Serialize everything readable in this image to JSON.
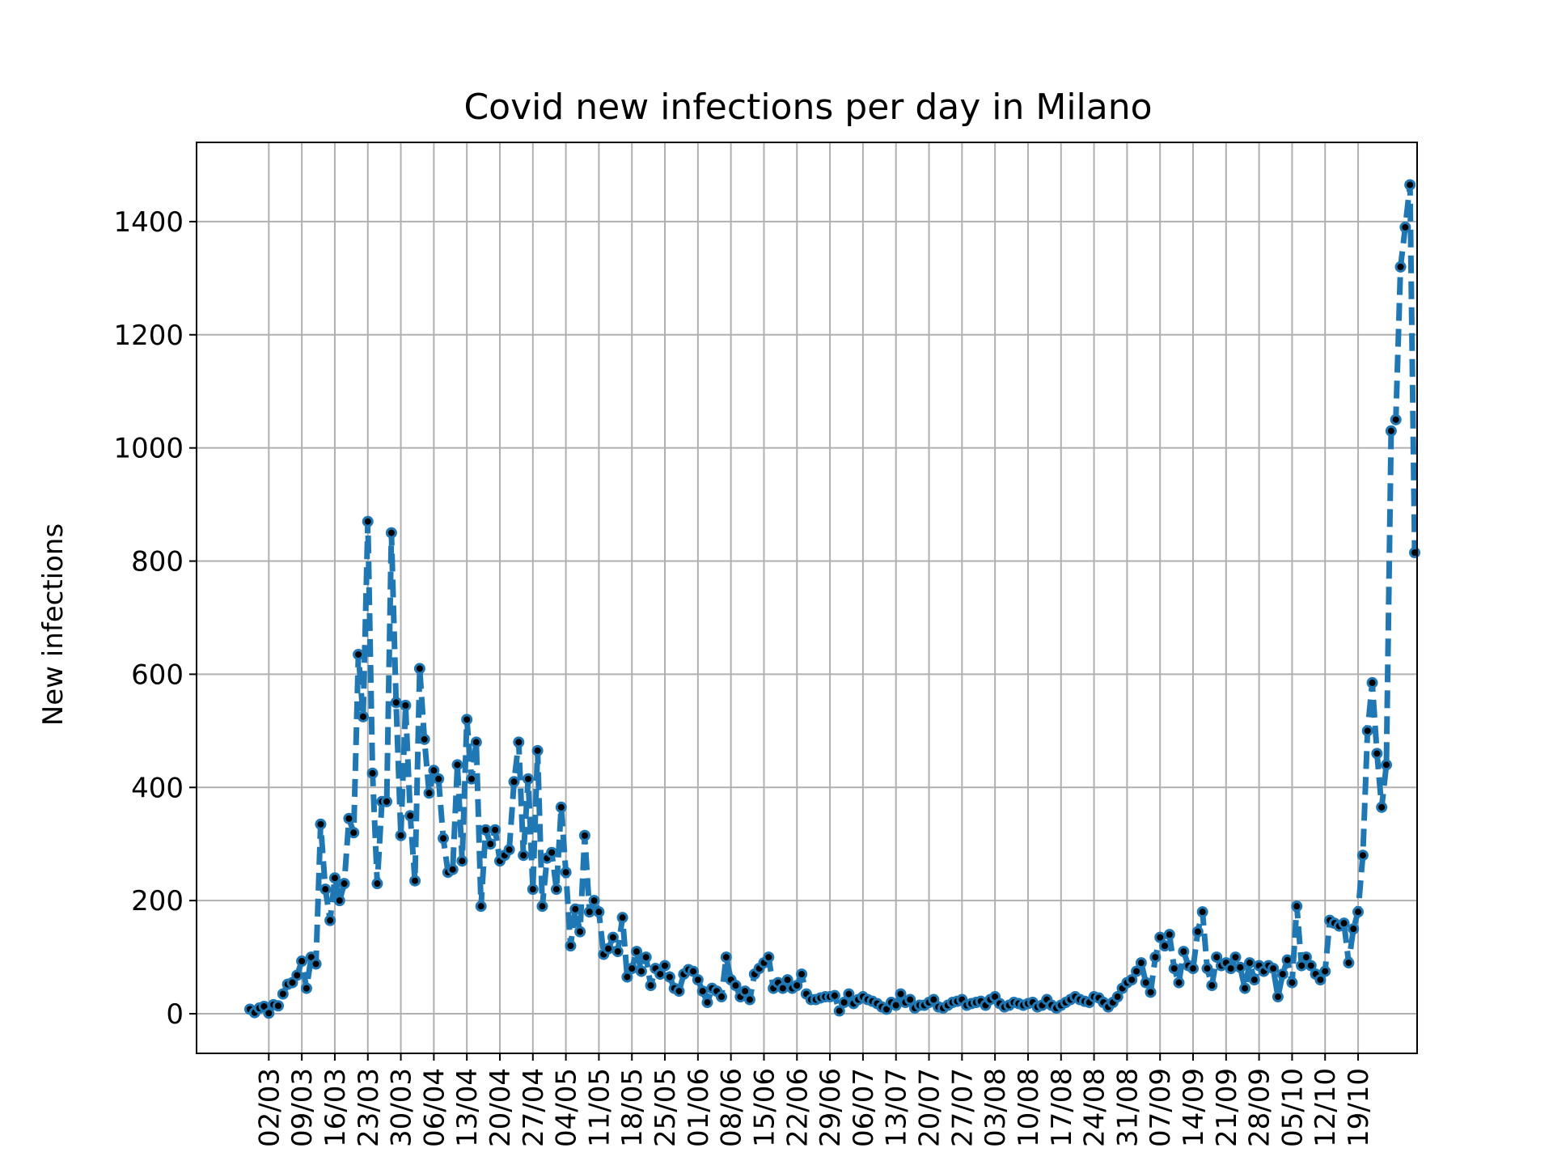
{
  "chart_data": {
    "type": "line",
    "title": "Covid new infections per day in Milano",
    "xlabel": "",
    "ylabel": "New infections",
    "x_tick_labels": [
      "02/03",
      "09/03",
      "16/03",
      "23/03",
      "30/03",
      "06/04",
      "13/04",
      "20/04",
      "27/04",
      "04/05",
      "11/05",
      "18/05",
      "25/05",
      "01/06",
      "08/06",
      "15/06",
      "22/06",
      "29/06",
      "06/07",
      "13/07",
      "20/07",
      "27/07",
      "03/08",
      "10/08",
      "17/08",
      "24/08",
      "31/08",
      "07/09",
      "14/09",
      "21/09",
      "28/09",
      "05/10",
      "12/10",
      "19/10"
    ],
    "y_ticks": [
      0,
      200,
      400,
      600,
      800,
      1000,
      1200,
      1400
    ],
    "ylim": [
      -70,
      1540
    ],
    "x_first_label": "02/03",
    "grid": true,
    "series": [
      {
        "color": "#1f77b4",
        "marker_color": "#000000",
        "line_style": "dashed",
        "values": [
          8,
          2,
          10,
          13,
          1,
          16,
          14,
          35,
          52,
          55,
          68,
          93,
          45,
          100,
          88,
          335,
          220,
          165,
          240,
          200,
          230,
          345,
          320,
          635,
          525,
          870,
          425,
          230,
          375,
          375,
          850,
          550,
          315,
          545,
          350,
          235,
          610,
          485,
          390,
          430,
          415,
          310,
          250,
          255,
          440,
          270,
          520,
          415,
          480,
          190,
          325,
          300,
          325,
          270,
          280,
          290,
          410,
          480,
          280,
          415,
          220,
          465,
          190,
          275,
          285,
          220,
          365,
          250,
          120,
          185,
          145,
          315,
          180,
          200,
          180,
          105,
          115,
          135,
          110,
          170,
          65,
          80,
          110,
          75,
          100,
          50,
          80,
          70,
          85,
          65,
          45,
          40,
          70,
          78,
          75,
          60,
          40,
          20,
          45,
          40,
          30,
          100,
          60,
          50,
          30,
          40,
          25,
          70,
          80,
          90,
          100,
          45,
          55,
          45,
          60,
          45,
          50,
          70,
          35,
          25,
          25,
          28,
          30,
          30,
          32,
          5,
          20,
          35,
          18,
          25,
          30,
          25,
          22,
          18,
          12,
          8,
          20,
          15,
          35,
          20,
          25,
          10,
          15,
          15,
          20,
          25,
          12,
          10,
          15,
          20,
          22,
          25,
          15,
          18,
          20,
          22,
          15,
          25,
          30,
          18,
          12,
          15,
          20,
          18,
          15,
          18,
          20,
          12,
          15,
          25,
          15,
          10,
          15,
          20,
          25,
          30,
          25,
          22,
          20,
          30,
          28,
          20,
          12,
          20,
          30,
          45,
          55,
          60,
          75,
          90,
          55,
          38,
          100,
          135,
          120,
          140,
          80,
          55,
          110,
          85,
          80,
          145,
          180,
          80,
          50,
          100,
          85,
          90,
          80,
          100,
          82,
          45,
          90,
          60,
          85,
          75,
          85,
          80,
          30,
          70,
          95,
          55,
          190,
          85,
          100,
          85,
          70,
          60,
          75,
          165,
          160,
          155,
          160,
          90,
          150,
          180,
          280,
          500,
          585,
          460,
          365,
          440,
          1030,
          1050,
          1320,
          1390,
          1465,
          815
        ]
      }
    ]
  }
}
